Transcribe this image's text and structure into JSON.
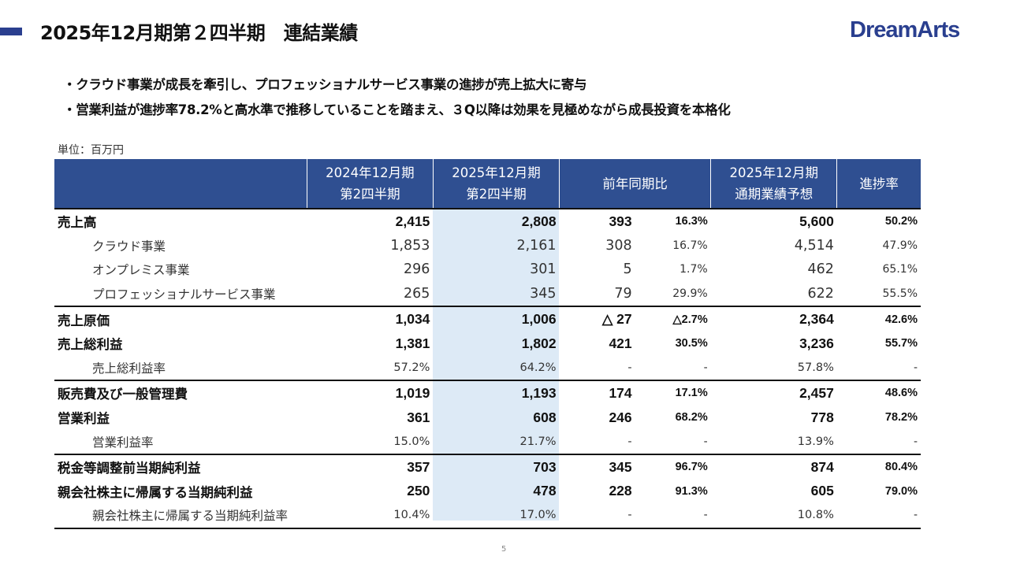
{
  "header": {
    "title": "2025年12月期第２四半期　連結業績",
    "logo_text": "DreamArts",
    "accent_color": "#2a3f8f"
  },
  "bullets": [
    "・クラウド事業が成長を牽引し、プロフェッショナルサービス事業の進捗が売上拡大に寄与",
    "・営業利益が進捗率78.2%と高水準で推移していることを踏まえ、３Q以降は効果を見極めながら成長投資を本格化"
  ],
  "unit_label": "単位：百万円",
  "table": {
    "header_color": "#2f4f91",
    "highlight_color": "#ddeaf6",
    "columns": {
      "prev_line1": "2024年12月期",
      "prev_line2": "第2四半期",
      "curr_line1": "2025年12月期",
      "curr_line2": "第2四半期",
      "yoy": "前年同期比",
      "forecast_line1": "2025年12月期",
      "forecast_line2": "通期業績予想",
      "progress": "進捗率"
    },
    "rows": [
      {
        "label": "売上高",
        "prev": "2,415",
        "curr": "2,808",
        "diff": "393",
        "pct": "16.3%",
        "forecast": "5,600",
        "progress": "50.2%"
      },
      {
        "label": "クラウド事業",
        "prev": "1,853",
        "curr": "2,161",
        "diff": "308",
        "pct": "16.7%",
        "forecast": "4,514",
        "progress": "47.9%"
      },
      {
        "label": "オンプレミス事業",
        "prev": "296",
        "curr": "301",
        "diff": "5",
        "pct": "1.7%",
        "forecast": "462",
        "progress": "65.1%"
      },
      {
        "label": "プロフェッショナルサービス事業",
        "prev": "265",
        "curr": "345",
        "diff": "79",
        "pct": "29.9%",
        "forecast": "622",
        "progress": "55.5%"
      },
      {
        "label": "売上原価",
        "prev": "1,034",
        "curr": "1,006",
        "diff": "△ 27",
        "pct": "△2.7%",
        "forecast": "2,364",
        "progress": "42.6%"
      },
      {
        "label": "売上総利益",
        "prev": "1,381",
        "curr": "1,802",
        "diff": "421",
        "pct": "30.5%",
        "forecast": "3,236",
        "progress": "55.7%"
      },
      {
        "label": "売上総利益率",
        "prev": "57.2%",
        "curr": "64.2%",
        "diff": "-",
        "pct": "-",
        "forecast": "57.8%",
        "progress": "-"
      },
      {
        "label": "販売費及び一般管理費",
        "prev": "1,019",
        "curr": "1,193",
        "diff": "174",
        "pct": "17.1%",
        "forecast": "2,457",
        "progress": "48.6%"
      },
      {
        "label": "営業利益",
        "prev": "361",
        "curr": "608",
        "diff": "246",
        "pct": "68.2%",
        "forecast": "778",
        "progress": "78.2%"
      },
      {
        "label": "営業利益率",
        "prev": "15.0%",
        "curr": "21.7%",
        "diff": "-",
        "pct": "-",
        "forecast": "13.9%",
        "progress": "-"
      },
      {
        "label": "税金等調整前当期純利益",
        "prev": "357",
        "curr": "703",
        "diff": "345",
        "pct": "96.7%",
        "forecast": "874",
        "progress": "80.4%"
      },
      {
        "label": "親会社株主に帰属する当期純利益",
        "prev": "250",
        "curr": "478",
        "diff": "228",
        "pct": "91.3%",
        "forecast": "605",
        "progress": "79.0%"
      },
      {
        "label": "親会社株主に帰属する当期純利益率",
        "prev": "10.4%",
        "curr": "17.0%",
        "diff": "-",
        "pct": "-",
        "forecast": "10.8%",
        "progress": "-"
      }
    ]
  },
  "page_number": "5"
}
